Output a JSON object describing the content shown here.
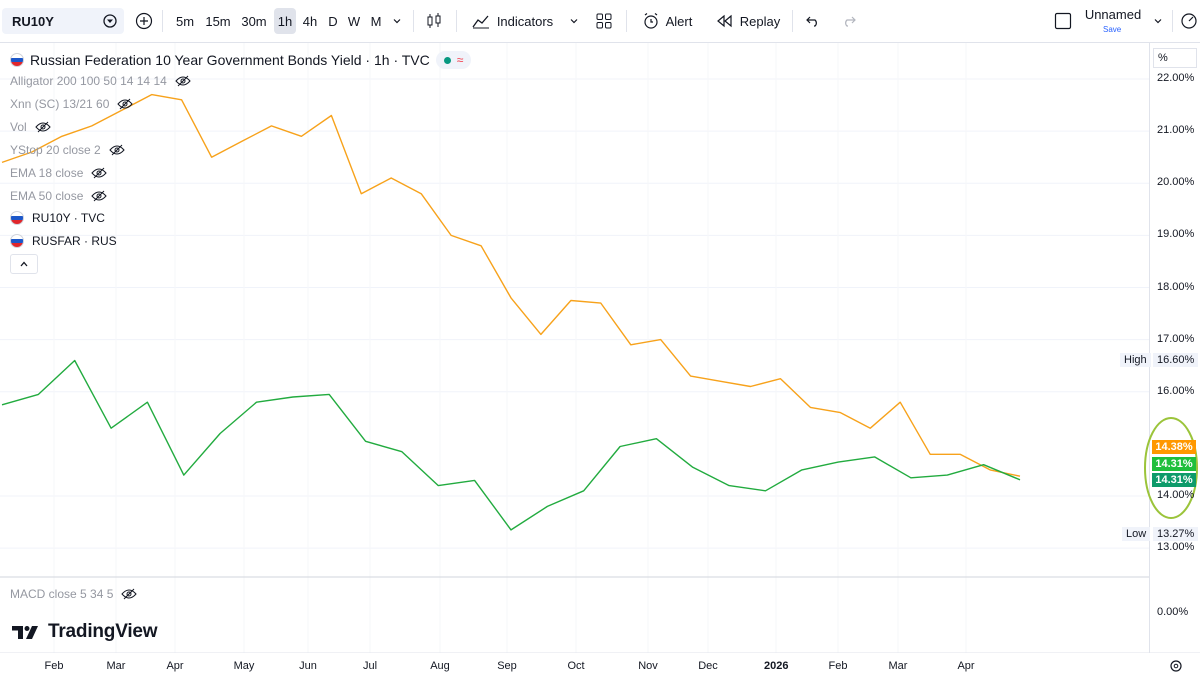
{
  "toolbar": {
    "symbol": "RU10Y",
    "timeframes": [
      "5m",
      "15m",
      "30m",
      "1h",
      "4h",
      "D",
      "W",
      "M"
    ],
    "active_timeframe": "1h",
    "indicators_label": "Indicators",
    "alert_label": "Alert",
    "replay_label": "Replay",
    "layout_name": "Unnamed",
    "save_label": "Save"
  },
  "legend": {
    "title": "Russian Federation 10 Year Government Bonds Yield · 1h · TVC",
    "indicators": [
      "Alligator 200 100 50 14 14 14",
      "Xnn (SC) 13/21 60",
      "Vol",
      "YStop 20 close 2",
      "EMA 18 close",
      "EMA 50 close"
    ],
    "symbols": [
      "RU10Y · TVC",
      "RUSFAR · RUS"
    ],
    "macd": "MACD close 5 34 5"
  },
  "brand": "TradingView",
  "price_axis": {
    "unit": "%",
    "ticks": [
      "22.00%",
      "21.00%",
      "20.00%",
      "19.00%",
      "18.00%",
      "17.00%",
      "16.00%",
      "14.00%",
      "13.00%"
    ],
    "high_label": "High",
    "high_value": "16.60%",
    "low_label": "Low",
    "low_value": "13.27%",
    "badges": [
      "14.38%",
      "14.31%",
      "14.31%"
    ],
    "macd_tick": "0.00%"
  },
  "time_axis": {
    "ticks": [
      "Feb",
      "Mar",
      "Apr",
      "May",
      "Jun",
      "Jul",
      "Aug",
      "Sep",
      "Oct",
      "Nov",
      "Dec",
      "2026",
      "Feb",
      "Mar",
      "Apr"
    ]
  },
  "colors": {
    "ru10y": "#f7a21b",
    "rusfar": "#22ab3f",
    "badge_orange": "#ff9800",
    "badge_green": "#1fbf3c",
    "badge_teal": "#0d9b6a",
    "highlight_ring": "#9bc43a"
  },
  "chart_data": {
    "type": "line",
    "title": "Russian Federation 10 Year Government Bonds Yield · 1h · TVC",
    "ylim": [
      12.6,
      22.3
    ],
    "series": [
      {
        "name": "RU10Y · TVC",
        "color": "#f7a21b",
        "x": [
          "Jan",
          "Feb",
          "Feb",
          "Mar",
          "Mar",
          "Apr",
          "Apr",
          "May",
          "May",
          "Jun",
          "Jun",
          "Jun",
          "Jul",
          "Jul",
          "Jul",
          "Aug",
          "Aug",
          "Aug",
          "Aug",
          "Sep",
          "Sep",
          "Oct",
          "Oct",
          "Nov",
          "Nov",
          "Dec",
          "Dec",
          "2026",
          "Jan",
          "Feb",
          "Feb",
          "Mar",
          "Mar",
          "Apr",
          "Apr"
        ],
        "values": [
          20.4,
          20.6,
          20.9,
          21.1,
          21.4,
          21.7,
          21.6,
          20.5,
          20.8,
          21.1,
          20.9,
          21.3,
          19.8,
          20.1,
          19.8,
          19.0,
          18.8,
          17.8,
          17.1,
          17.75,
          17.7,
          16.9,
          17.0,
          16.3,
          16.2,
          16.1,
          16.25,
          15.7,
          15.6,
          15.3,
          15.8,
          14.8,
          14.8,
          14.5,
          14.38
        ]
      },
      {
        "name": "RUSFAR · RUS",
        "color": "#22ab3f",
        "x": [
          "Jan",
          "Feb",
          "Feb",
          "Feb",
          "Mar",
          "Mar",
          "Apr",
          "Apr",
          "May",
          "Jun",
          "Jun",
          "Jul",
          "Aug",
          "Aug",
          "Aug",
          "Sep",
          "Sep",
          "Oct",
          "Oct",
          "Nov",
          "Dec",
          "Dec",
          "2026",
          "Jan",
          "Feb",
          "Feb",
          "Mar",
          "Apr",
          "Apr"
        ],
        "values": [
          15.75,
          15.95,
          16.6,
          15.3,
          15.8,
          14.4,
          15.2,
          15.8,
          15.9,
          15.95,
          15.05,
          14.85,
          14.2,
          14.3,
          13.35,
          13.8,
          14.1,
          14.95,
          15.1,
          14.55,
          14.2,
          14.1,
          14.5,
          14.65,
          14.75,
          14.35,
          14.4,
          14.6,
          14.31
        ]
      }
    ]
  }
}
